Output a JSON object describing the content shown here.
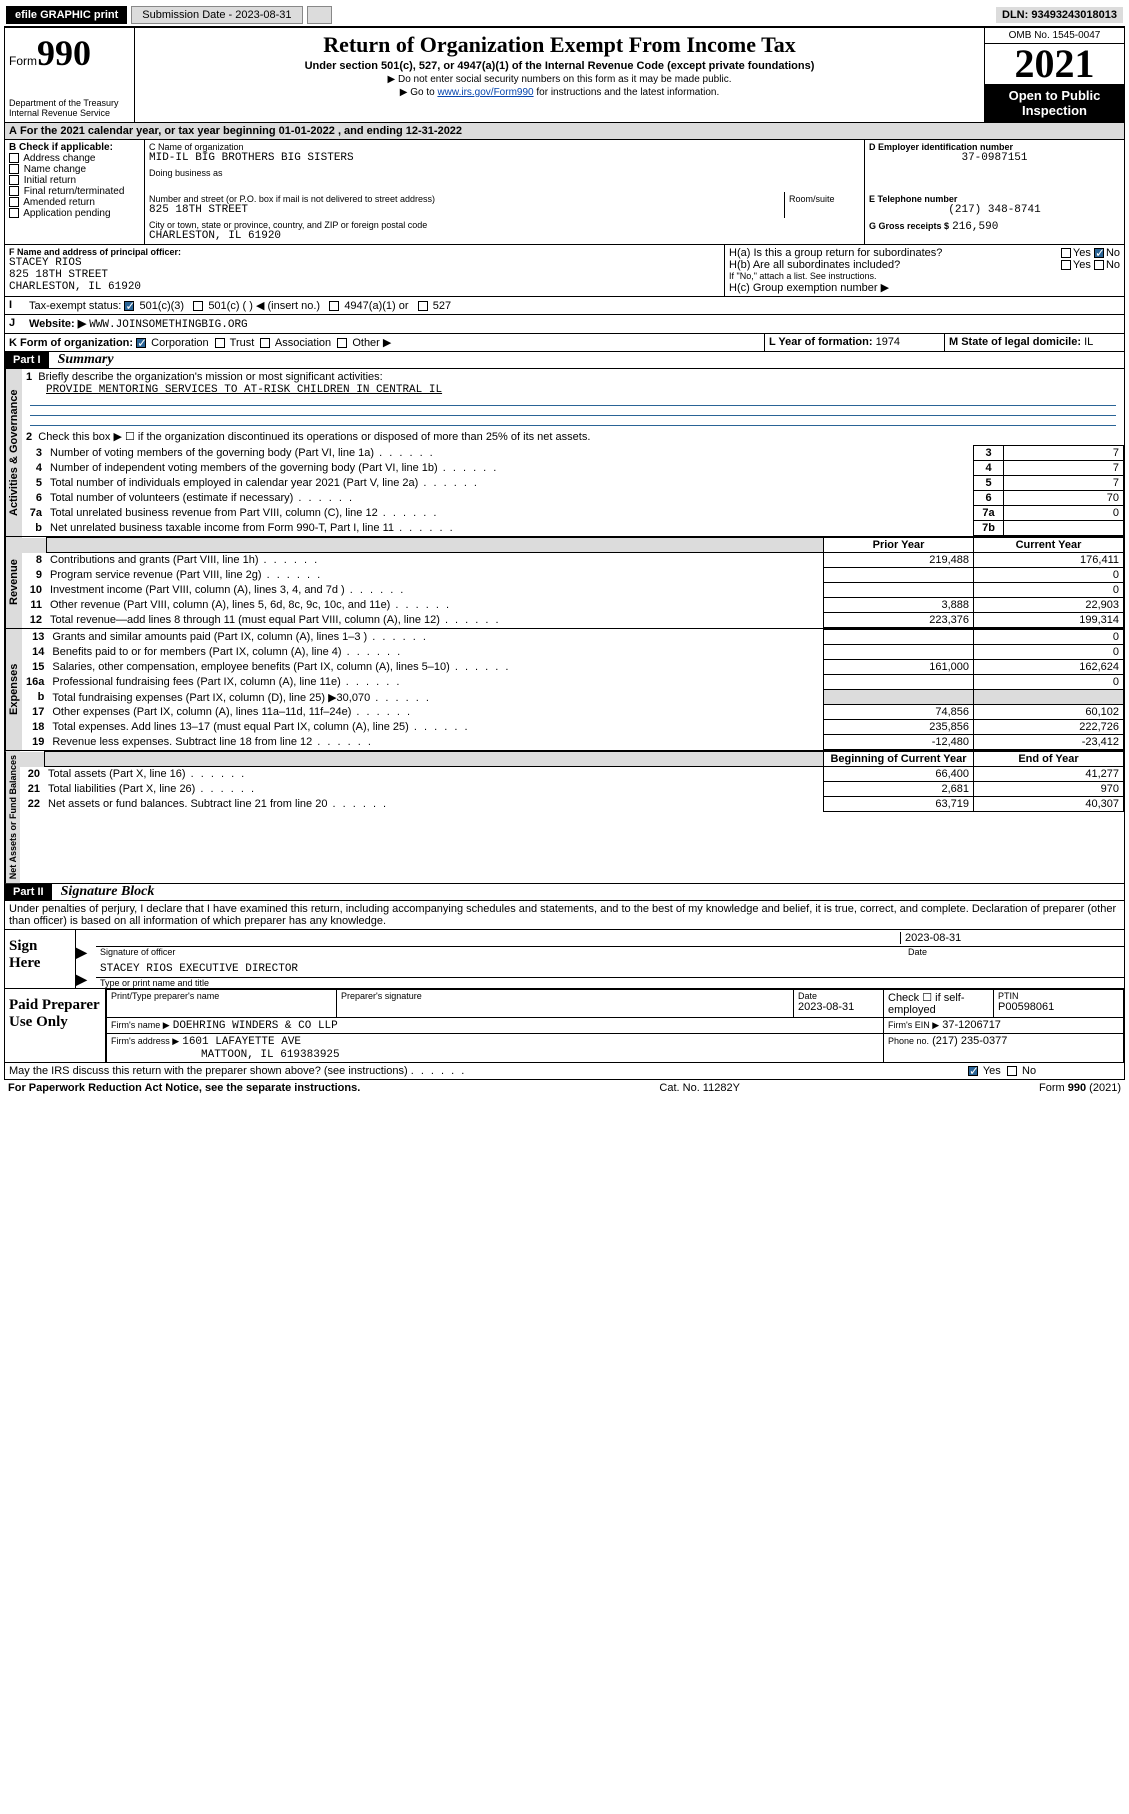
{
  "topbar": {
    "efile": "efile GRAPHIC print",
    "subdate_label": "Submission Date - 2023-08-31",
    "dln": "DLN: 93493243018013"
  },
  "header": {
    "form_prefix": "Form",
    "form_no": "990",
    "title": "Return of Organization Exempt From Income Tax",
    "subtitle": "Under section 501(c), 527, or 4947(a)(1) of the Internal Revenue Code (except private foundations)",
    "note1": "▶ Do not enter social security numbers on this form as it may be made public.",
    "note2_pre": "▶ Go to ",
    "note2_link": "www.irs.gov/Form990",
    "note2_post": " for instructions and the latest information.",
    "dept": "Department of the Treasury\nInternal Revenue Service",
    "omb": "OMB No. 1545-0047",
    "year": "2021",
    "open": "Open to Public Inspection"
  },
  "A": {
    "line": "For the 2021 calendar year, or tax year beginning 01-01-2022   , and ending 12-31-2022"
  },
  "B": {
    "label": "B Check if applicable:",
    "opts": [
      "Address change",
      "Name change",
      "Initial return",
      "Final return/terminated",
      "Amended return",
      "Application pending"
    ]
  },
  "C": {
    "name_label": "C Name of organization",
    "name": "MID-IL BIG BROTHERS BIG SISTERS",
    "dba_label": "Doing business as",
    "addr_label": "Number and street (or P.O. box if mail is not delivered to street address)",
    "room_label": "Room/suite",
    "addr": "825 18TH STREET",
    "city_label": "City or town, state or province, country, and ZIP or foreign postal code",
    "city": "CHARLESTON, IL  61920"
  },
  "D": {
    "label": "D Employer identification number",
    "val": "37-0987151"
  },
  "E": {
    "label": "E Telephone number",
    "val": "(217) 348-8741"
  },
  "G": {
    "label": "G Gross receipts $",
    "val": "216,590"
  },
  "F": {
    "label": "F Name and address of principal officer:",
    "name": "STACEY RIOS",
    "addr": "825 18TH STREET",
    "city": "CHARLESTON, IL  61920"
  },
  "H": {
    "a": "H(a)  Is this a group return for subordinates?",
    "b": "H(b)  Are all subordinates included?",
    "b_note": "If \"No,\" attach a list. See instructions.",
    "c": "H(c)  Group exemption number ▶",
    "yes": "Yes",
    "no": "No"
  },
  "I": {
    "label": "Tax-exempt status:",
    "opts": [
      "501(c)(3)",
      "501(c) (  ) ◀ (insert no.)",
      "4947(a)(1) or",
      "527"
    ]
  },
  "J": {
    "label": "Website: ▶",
    "val": "WWW.JOINSOMETHINGBIG.ORG"
  },
  "K": {
    "label": "K Form of organization:",
    "opts": [
      "Corporation",
      "Trust",
      "Association",
      "Other ▶"
    ]
  },
  "L": {
    "label": "L Year of formation:",
    "val": "1974"
  },
  "M": {
    "label": "M State of legal domicile:",
    "val": "IL"
  },
  "part1": {
    "header": "Part I",
    "title": "Summary",
    "l1_label": "Briefly describe the organization's mission or most significant activities:",
    "l1_val": "PROVIDE MENTORING SERVICES TO AT-RISK CHILDREN IN CENTRAL IL",
    "l2": "Check this box ▶ ☐ if the organization discontinued its operations or disposed of more than 25% of its net assets.",
    "tabs": {
      "gov": "Activities & Governance",
      "rev": "Revenue",
      "exp": "Expenses",
      "net": "Net Assets or Fund Balances"
    },
    "gov_rows": [
      {
        "n": "3",
        "t": "Number of voting members of the governing body (Part VI, line 1a)",
        "box": "3",
        "v": "7"
      },
      {
        "n": "4",
        "t": "Number of independent voting members of the governing body (Part VI, line 1b)",
        "box": "4",
        "v": "7"
      },
      {
        "n": "5",
        "t": "Total number of individuals employed in calendar year 2021 (Part V, line 2a)",
        "box": "5",
        "v": "7"
      },
      {
        "n": "6",
        "t": "Total number of volunteers (estimate if necessary)",
        "box": "6",
        "v": "70"
      },
      {
        "n": "7a",
        "t": "Total unrelated business revenue from Part VIII, column (C), line 12",
        "box": "7a",
        "v": "0"
      },
      {
        "n": "b",
        "t": "Net unrelated business taxable income from Form 990-T, Part I, line 11",
        "box": "7b",
        "v": ""
      }
    ],
    "col_prior": "Prior Year",
    "col_current": "Current Year",
    "rev_rows": [
      {
        "n": "8",
        "t": "Contributions and grants (Part VIII, line 1h)",
        "p": "219,488",
        "c": "176,411"
      },
      {
        "n": "9",
        "t": "Program service revenue (Part VIII, line 2g)",
        "p": "",
        "c": "0"
      },
      {
        "n": "10",
        "t": "Investment income (Part VIII, column (A), lines 3, 4, and 7d )",
        "p": "",
        "c": "0"
      },
      {
        "n": "11",
        "t": "Other revenue (Part VIII, column (A), lines 5, 6d, 8c, 9c, 10c, and 11e)",
        "p": "3,888",
        "c": "22,903"
      },
      {
        "n": "12",
        "t": "Total revenue—add lines 8 through 11 (must equal Part VIII, column (A), line 12)",
        "p": "223,376",
        "c": "199,314"
      }
    ],
    "exp_rows": [
      {
        "n": "13",
        "t": "Grants and similar amounts paid (Part IX, column (A), lines 1–3 )",
        "p": "",
        "c": "0"
      },
      {
        "n": "14",
        "t": "Benefits paid to or for members (Part IX, column (A), line 4)",
        "p": "",
        "c": "0"
      },
      {
        "n": "15",
        "t": "Salaries, other compensation, employee benefits (Part IX, column (A), lines 5–10)",
        "p": "161,000",
        "c": "162,624"
      },
      {
        "n": "16a",
        "t": "Professional fundraising fees (Part IX, column (A), line 11e)",
        "p": "",
        "c": "0"
      },
      {
        "n": "b",
        "t": "Total fundraising expenses (Part IX, column (D), line 25) ▶30,070",
        "p": "shade",
        "c": "shade"
      },
      {
        "n": "17",
        "t": "Other expenses (Part IX, column (A), lines 11a–11d, 11f–24e)",
        "p": "74,856",
        "c": "60,102"
      },
      {
        "n": "18",
        "t": "Total expenses. Add lines 13–17 (must equal Part IX, column (A), line 25)",
        "p": "235,856",
        "c": "222,726"
      },
      {
        "n": "19",
        "t": "Revenue less expenses. Subtract line 18 from line 12",
        "p": "-12,480",
        "c": "-23,412"
      }
    ],
    "col_begin": "Beginning of Current Year",
    "col_end": "End of Year",
    "net_rows": [
      {
        "n": "20",
        "t": "Total assets (Part X, line 16)",
        "p": "66,400",
        "c": "41,277"
      },
      {
        "n": "21",
        "t": "Total liabilities (Part X, line 26)",
        "p": "2,681",
        "c": "970"
      },
      {
        "n": "22",
        "t": "Net assets or fund balances. Subtract line 21 from line 20",
        "p": "63,719",
        "c": "40,307"
      }
    ]
  },
  "part2": {
    "header": "Part II",
    "title": "Signature Block",
    "decl": "Under penalties of perjury, I declare that I have examined this return, including accompanying schedules and statements, and to the best of my knowledge and belief, it is true, correct, and complete. Declaration of preparer (other than officer) is based on all information of which preparer has any knowledge.",
    "sign_here": "Sign Here",
    "sig_officer": "Signature of officer",
    "date": "Date",
    "sig_date": "2023-08-31",
    "officer_name": "STACEY RIOS EXECUTIVE DIRECTOR",
    "type_name": "Type or print name and title",
    "paid": "Paid Preparer Use Only",
    "prep_name_label": "Print/Type preparer's name",
    "prep_sig_label": "Preparer's signature",
    "prep_date": "2023-08-31",
    "check_if": "Check ☐ if self-employed",
    "ptin_label": "PTIN",
    "ptin": "P00598061",
    "firm_name_label": "Firm's name    ▶",
    "firm_name": "DOEHRING WINDERS & CO LLP",
    "firm_ein_label": "Firm's EIN ▶",
    "firm_ein": "37-1206717",
    "firm_addr_label": "Firm's address ▶",
    "firm_addr": "1601 LAFAYETTE AVE",
    "firm_city": "MATTOON, IL  619383925",
    "phone_label": "Phone no.",
    "phone": "(217) 235-0377",
    "may_irs": "May the IRS discuss this return with the preparer shown above? (see instructions)",
    "yes": "Yes",
    "no": "No"
  },
  "footer": {
    "pra": "For Paperwork Reduction Act Notice, see the separate instructions.",
    "cat": "Cat. No. 11282Y",
    "form": "Form 990 (2021)"
  }
}
